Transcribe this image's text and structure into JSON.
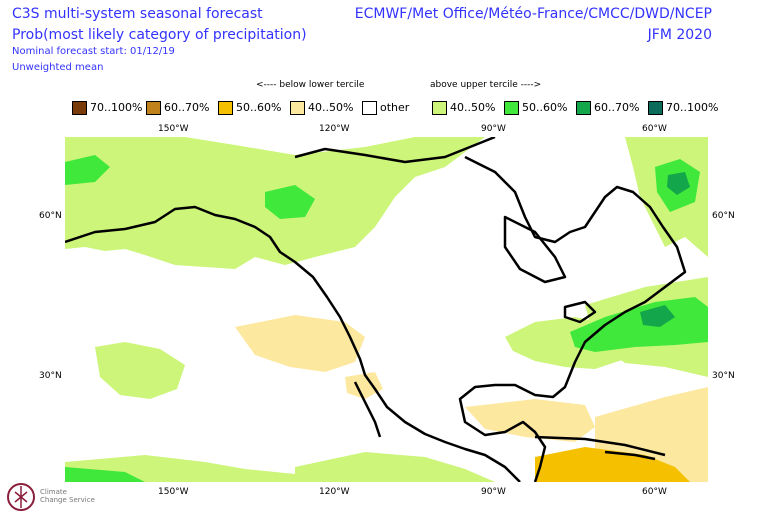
{
  "header": {
    "left_line1": "C3S multi-system seasonal forecast",
    "left_line2": "Prob(most likely category of precipitation)",
    "left_line3": "Nominal forecast start: 01/12/19",
    "left_line4": "Unweighted mean",
    "right_line1": "ECMWF/Met Office/Météo-France/CMCC/DWD/NCEP",
    "right_line2": "JFM 2020"
  },
  "legend": {
    "below_heading": "<---- below lower tercile",
    "above_heading": "above upper tercile ---->",
    "items": [
      {
        "label": "70..100%",
        "color": "#7a3b0a"
      },
      {
        "label": "60..70%",
        "color": "#c0821a"
      },
      {
        "label": "50..60%",
        "color": "#f4c000"
      },
      {
        "label": "40..50%",
        "color": "#fde8a0"
      },
      {
        "label": "other",
        "color": "#ffffff"
      },
      {
        "label": "40..50%",
        "color": "#ccf57a"
      },
      {
        "label": "50..60%",
        "color": "#3fe83a"
      },
      {
        "label": "60..70%",
        "color": "#14a64a"
      },
      {
        "label": "70..100%",
        "color": "#0c6c5c"
      }
    ]
  },
  "map": {
    "lon_ticks_top": [
      "150°W",
      "120°W",
      "90°W",
      "60°W"
    ],
    "lon_ticks_bottom": [
      "150°W",
      "120°W",
      "90°W",
      "60°W"
    ],
    "lat_ticks_left": [
      "60°N",
      "30°N"
    ],
    "lat_ticks_right": [
      "60°N",
      "30°N"
    ],
    "colors": {
      "land_outline": "#000000",
      "background": "#ffffff"
    }
  },
  "logo": {
    "line1": "Climate",
    "line2": "Change Service"
  }
}
